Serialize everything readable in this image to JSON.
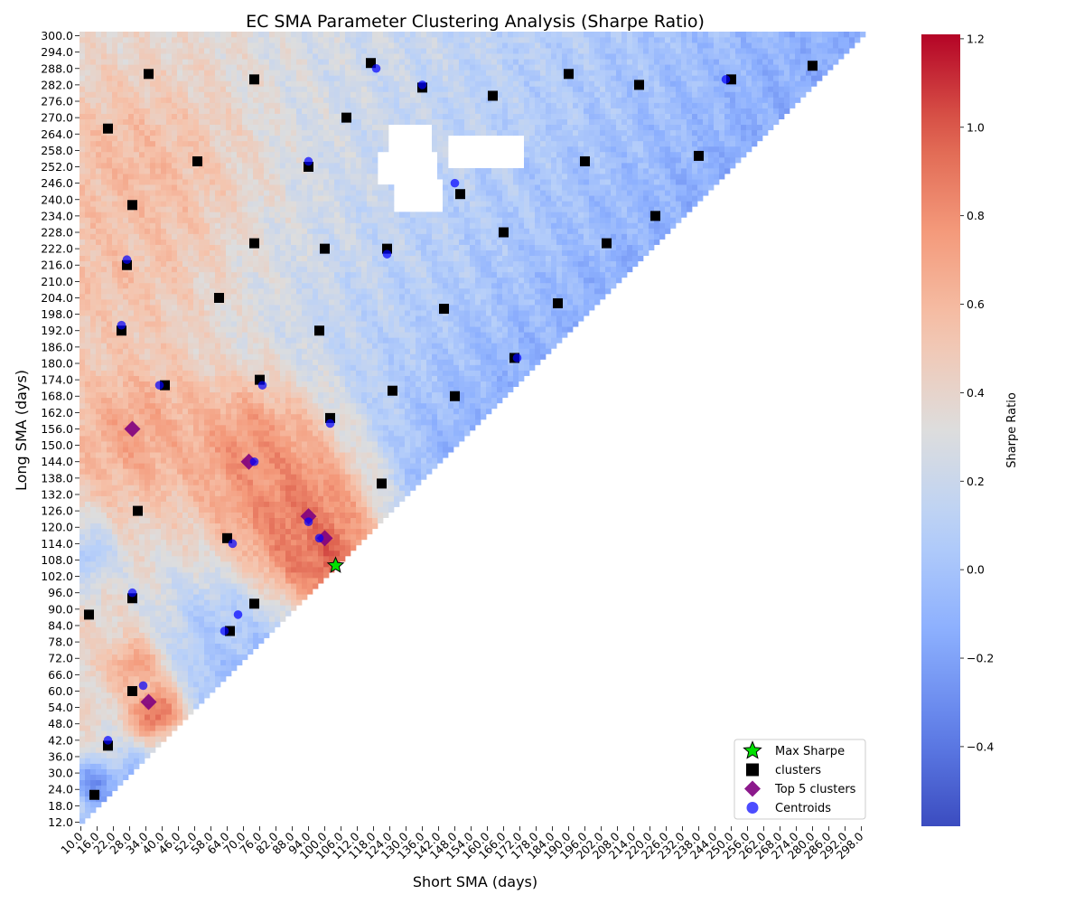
{
  "chart_data": {
    "type": "heatmap",
    "title": "EC SMA Parameter Clustering Analysis (Sharpe Ratio)",
    "xlabel": "Short SMA (days)",
    "ylabel": "Long SMA (days)",
    "colorbar_label": "Sharpe Ratio",
    "colormap": "coolwarm",
    "color_range": [
      -0.58,
      1.21
    ],
    "colorbar_ticks": [
      -0.4,
      -0.2,
      0.0,
      0.2,
      0.4,
      0.6,
      0.8,
      1.0,
      1.2
    ],
    "colorbar_tick_labels": [
      "−0.4",
      "−0.2",
      "0.0",
      "0.2",
      "0.4",
      "0.6",
      "0.8",
      "1.0",
      "1.2"
    ],
    "x_range": [
      10,
      300
    ],
    "y_range": [
      12,
      300
    ],
    "x_tick_labels": [
      "10.0",
      "16.0",
      "22.0",
      "28.0",
      "34.0",
      "40.0",
      "46.0",
      "52.0",
      "58.0",
      "64.0",
      "70.0",
      "76.0",
      "82.0",
      "88.0",
      "94.0",
      "100.0",
      "106.0",
      "112.0",
      "118.0",
      "124.0",
      "130.0",
      "136.0",
      "142.0",
      "148.0",
      "154.0",
      "160.0",
      "166.0",
      "172.0",
      "178.0",
      "184.0",
      "190.0",
      "196.0",
      "202.0",
      "208.0",
      "214.0",
      "220.0",
      "226.0",
      "232.0",
      "238.0",
      "244.0",
      "250.0",
      "256.0",
      "262.0",
      "268.0",
      "274.0",
      "280.0",
      "286.0",
      "292.0",
      "298.0"
    ],
    "y_tick_labels": [
      "12.0",
      "18.0",
      "24.0",
      "30.0",
      "36.0",
      "42.0",
      "48.0",
      "54.0",
      "60.0",
      "66.0",
      "72.0",
      "78.0",
      "84.0",
      "90.0",
      "96.0",
      "102.0",
      "108.0",
      "114.0",
      "120.0",
      "126.0",
      "132.0",
      "138.0",
      "144.0",
      "150.0",
      "156.0",
      "162.0",
      "168.0",
      "174.0",
      "180.0",
      "186.0",
      "192.0",
      "198.0",
      "204.0",
      "210.0",
      "216.0",
      "222.0",
      "228.0",
      "234.0",
      "240.0",
      "246.0",
      "252.0",
      "258.0",
      "264.0",
      "270.0",
      "276.0",
      "282.0",
      "288.0",
      "294.0",
      "300.0"
    ],
    "valid_region": "long > short",
    "heat_anchors": [
      {
        "short": 100,
        "long": 110,
        "sharpe": 1.0,
        "spread": 22
      },
      {
        "short": 88,
        "long": 128,
        "sharpe": 0.92,
        "spread": 28
      },
      {
        "short": 72,
        "long": 148,
        "sharpe": 0.8,
        "spread": 26
      },
      {
        "short": 30,
        "long": 155,
        "sharpe": 0.7,
        "spread": 28
      },
      {
        "short": 38,
        "long": 52,
        "sharpe": 0.95,
        "spread": 12
      },
      {
        "short": 30,
        "long": 70,
        "sharpe": 0.75,
        "spread": 10
      },
      {
        "short": 30,
        "long": 250,
        "sharpe": 0.6,
        "spread": 38
      },
      {
        "short": 20,
        "long": 215,
        "sharpe": 0.55,
        "spread": 30
      },
      {
        "short": 12,
        "long": 110,
        "sharpe": 0.05,
        "spread": 12
      },
      {
        "short": 14,
        "long": 26,
        "sharpe": -0.3,
        "spread": 8
      },
      {
        "short": 60,
        "long": 85,
        "sharpe": 0.05,
        "spread": 14
      }
    ],
    "missing_patches": [
      {
        "short": [
          124,
          138
        ],
        "long": [
          256,
          267
        ]
      },
      {
        "short": [
          120,
          140
        ],
        "long": [
          246,
          256
        ]
      },
      {
        "short": [
          126,
          142
        ],
        "long": [
          236,
          246
        ]
      },
      {
        "short": [
          145,
          172
        ],
        "long": [
          252,
          262
        ]
      }
    ],
    "series": [
      {
        "name": "clusters",
        "marker": "square",
        "color": "#000000",
        "points": [
          [
            35,
            286
          ],
          [
            74,
            284
          ],
          [
            117,
            290
          ],
          [
            136,
            281
          ],
          [
            162,
            278
          ],
          [
            190,
            286
          ],
          [
            216,
            282
          ],
          [
            250,
            284
          ],
          [
            280,
            289
          ],
          [
            20,
            266
          ],
          [
            108,
            270
          ],
          [
            53,
            254
          ],
          [
            94,
            252
          ],
          [
            150,
            242
          ],
          [
            196,
            254
          ],
          [
            238,
            256
          ],
          [
            29,
            238
          ],
          [
            166,
            228
          ],
          [
            204,
            224
          ],
          [
            222,
            234
          ],
          [
            74,
            224
          ],
          [
            100,
            222
          ],
          [
            123,
            222
          ],
          [
            27,
            216
          ],
          [
            61,
            204
          ],
          [
            144,
            200
          ],
          [
            186,
            202
          ],
          [
            98,
            192
          ],
          [
            25,
            192
          ],
          [
            41,
            172
          ],
          [
            76,
            174
          ],
          [
            125,
            170
          ],
          [
            170,
            182
          ],
          [
            148,
            168
          ],
          [
            102,
            160
          ],
          [
            121,
            136
          ],
          [
            31,
            126
          ],
          [
            64,
            116
          ],
          [
            29,
            94
          ],
          [
            74,
            92
          ],
          [
            65,
            82
          ],
          [
            13,
            88
          ],
          [
            29,
            60
          ],
          [
            20,
            40
          ],
          [
            15,
            22
          ]
        ]
      },
      {
        "name": "Top 5 clusters",
        "marker": "diamond",
        "color": "#800080",
        "points": [
          [
            29,
            156
          ],
          [
            72,
            144
          ],
          [
            94,
            124
          ],
          [
            100,
            116
          ],
          [
            35,
            56
          ]
        ]
      },
      {
        "name": "Centroids",
        "marker": "circle",
        "color": "#0000ff",
        "points": [
          [
            119,
            288
          ],
          [
            136,
            282
          ],
          [
            248,
            284
          ],
          [
            94,
            254
          ],
          [
            148,
            246
          ],
          [
            27,
            218
          ],
          [
            123,
            220
          ],
          [
            25,
            194
          ],
          [
            39,
            172
          ],
          [
            77,
            172
          ],
          [
            102,
            158
          ],
          [
            74,
            144
          ],
          [
            94,
            122
          ],
          [
            98,
            116
          ],
          [
            66,
            114
          ],
          [
            29,
            96
          ],
          [
            68,
            88
          ],
          [
            63,
            82
          ],
          [
            33,
            62
          ],
          [
            20,
            42
          ],
          [
            171,
            182
          ]
        ]
      },
      {
        "name": "Max Sharpe",
        "marker": "star",
        "color": "#00e000",
        "points": [
          [
            104,
            106
          ]
        ]
      }
    ],
    "legend": {
      "position": "lower-right",
      "entries": [
        "Max Sharpe",
        "clusters",
        "Top 5 clusters",
        "Centroids"
      ]
    }
  }
}
